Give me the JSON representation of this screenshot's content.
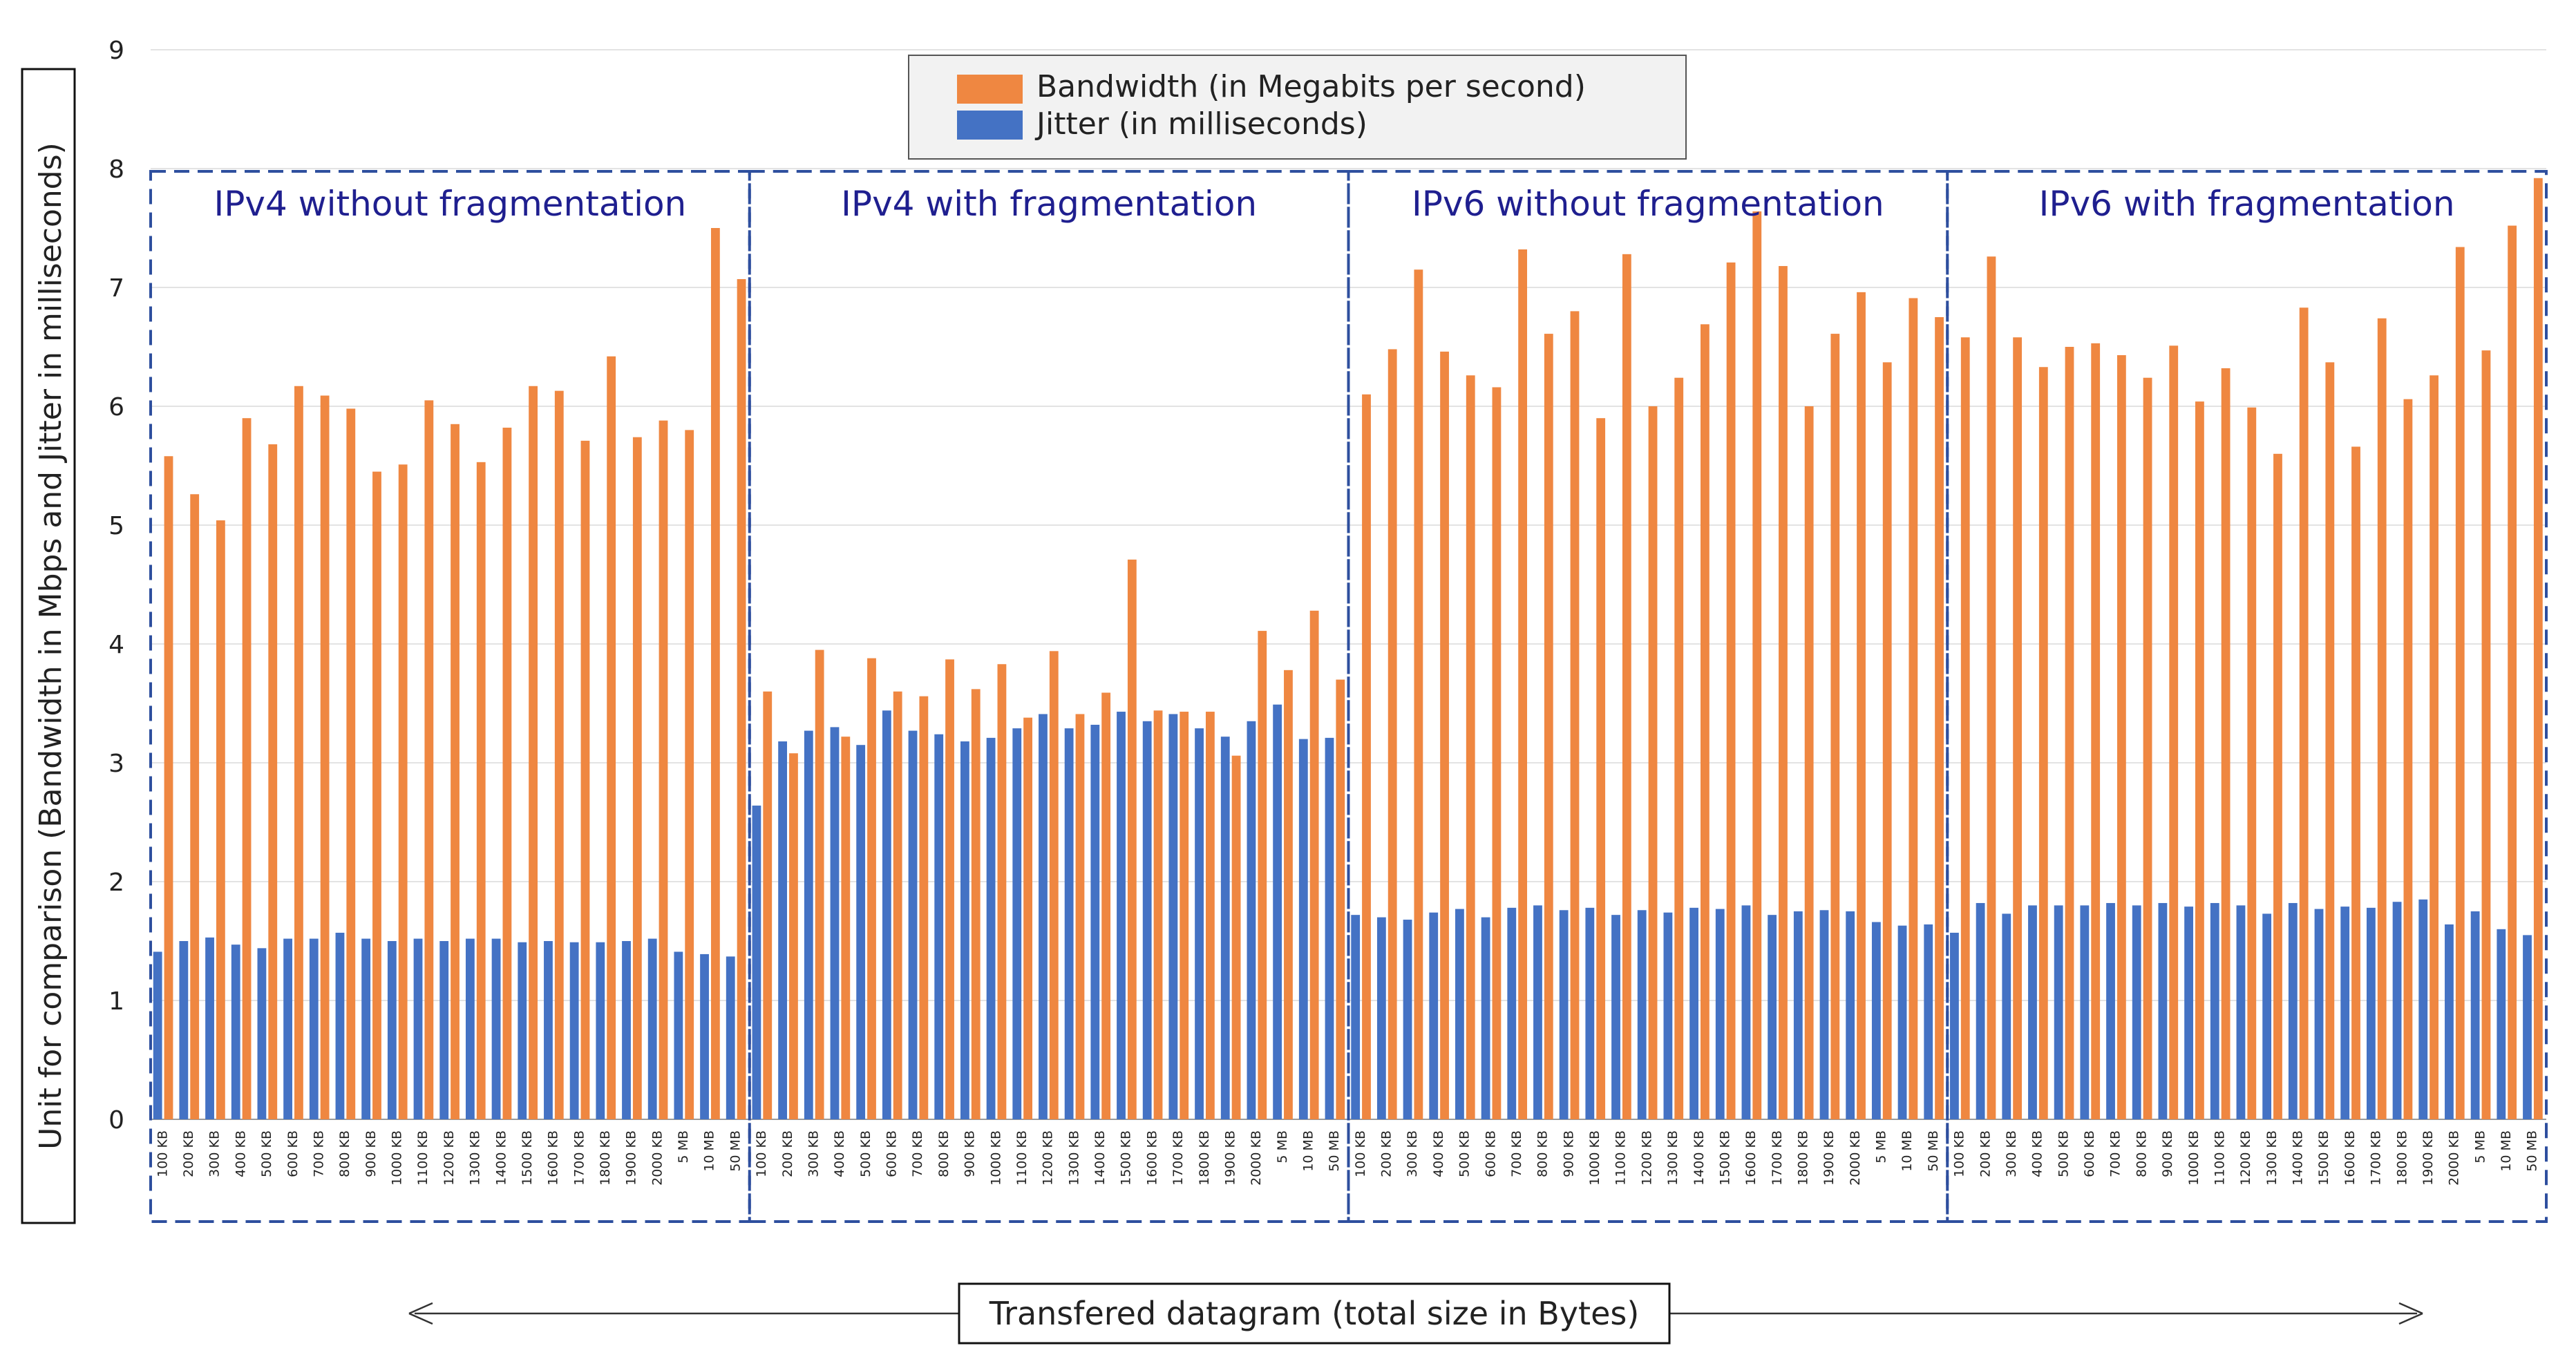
{
  "chart_data": {
    "type": "bar",
    "ylabel": "Unit for comparison (Bandwidth in Mbps and Jitter in milliseconds)",
    "xlabel": "Transfered datagram (total size in Bytes)",
    "ylim": [
      0,
      9
    ],
    "yticks": [
      0,
      1,
      2,
      3,
      4,
      5,
      6,
      7,
      8,
      9
    ],
    "grid": true,
    "legend_position": "top-center",
    "categories": [
      "100 KB",
      "200 KB",
      "300 KB",
      "400 KB",
      "500 KB",
      "600 KB",
      "700 KB",
      "800 KB",
      "900 KB",
      "1000 KB",
      "1100 KB",
      "1200 KB",
      "1300 KB",
      "1400 KB",
      "1500 KB",
      "1600 KB",
      "1700 KB",
      "1800 KB",
      "1900 KB",
      "2000 KB",
      "5 MB",
      "10 MB",
      "50 MB"
    ],
    "series_meta": [
      {
        "name": "Bandwidth (in Megabits per second)",
        "color": "#ef8741"
      },
      {
        "name": "Jitter (in milliseconds)",
        "color": "#4472c4"
      }
    ],
    "groups": [
      {
        "title": "IPv4 without fragmentation",
        "bandwidth": [
          5.58,
          5.26,
          5.04,
          5.9,
          5.68,
          6.17,
          6.09,
          5.98,
          5.45,
          5.51,
          6.05,
          5.85,
          5.53,
          5.82,
          6.17,
          6.13,
          5.71,
          6.42,
          5.74,
          5.88,
          5.8,
          7.5,
          7.07
        ],
        "jitter": [
          1.41,
          1.5,
          1.53,
          1.47,
          1.44,
          1.52,
          1.52,
          1.57,
          1.52,
          1.5,
          1.52,
          1.5,
          1.52,
          1.52,
          1.49,
          1.5,
          1.49,
          1.49,
          1.5,
          1.52,
          1.41,
          1.39,
          1.37
        ]
      },
      {
        "title": "IPv4 with fragmentation",
        "bandwidth": [
          3.6,
          3.08,
          3.95,
          3.22,
          3.88,
          3.6,
          3.56,
          3.87,
          3.62,
          3.83,
          3.38,
          3.94,
          3.41,
          3.59,
          4.71,
          3.44,
          3.43,
          3.43,
          3.06,
          4.11,
          3.78,
          4.28,
          3.7
        ],
        "jitter": [
          2.64,
          3.18,
          3.27,
          3.3,
          3.15,
          3.44,
          3.27,
          3.24,
          3.18,
          3.21,
          3.29,
          3.41,
          3.29,
          3.32,
          3.43,
          3.35,
          3.41,
          3.29,
          3.22,
          3.35,
          3.49,
          3.2,
          3.21
        ]
      },
      {
        "title": "IPv6 without fragmentation",
        "bandwidth": [
          6.1,
          6.48,
          7.15,
          6.46,
          6.26,
          6.16,
          7.32,
          6.61,
          6.8,
          5.9,
          7.28,
          6.0,
          6.24,
          6.69,
          7.21,
          7.64,
          7.18,
          6.0,
          6.61,
          6.96,
          6.37,
          6.91,
          6.75
        ],
        "jitter": [
          1.72,
          1.7,
          1.68,
          1.74,
          1.77,
          1.7,
          1.78,
          1.8,
          1.76,
          1.78,
          1.72,
          1.76,
          1.74,
          1.78,
          1.77,
          1.8,
          1.72,
          1.75,
          1.76,
          1.75,
          1.66,
          1.63,
          1.64
        ]
      },
      {
        "title": "IPv6 with fragmentation",
        "bandwidth": [
          6.58,
          7.26,
          6.58,
          6.33,
          6.5,
          6.53,
          6.43,
          6.24,
          6.51,
          6.04,
          6.32,
          5.99,
          5.6,
          6.83,
          6.37,
          5.66,
          6.74,
          6.06,
          6.26,
          7.34,
          6.47,
          7.52,
          7.92
        ],
        "jitter": [
          1.57,
          1.82,
          1.73,
          1.8,
          1.8,
          1.8,
          1.82,
          1.8,
          1.82,
          1.79,
          1.82,
          1.8,
          1.73,
          1.82,
          1.77,
          1.79,
          1.78,
          1.83,
          1.85,
          1.64,
          1.75,
          1.6,
          1.55
        ]
      }
    ]
  }
}
